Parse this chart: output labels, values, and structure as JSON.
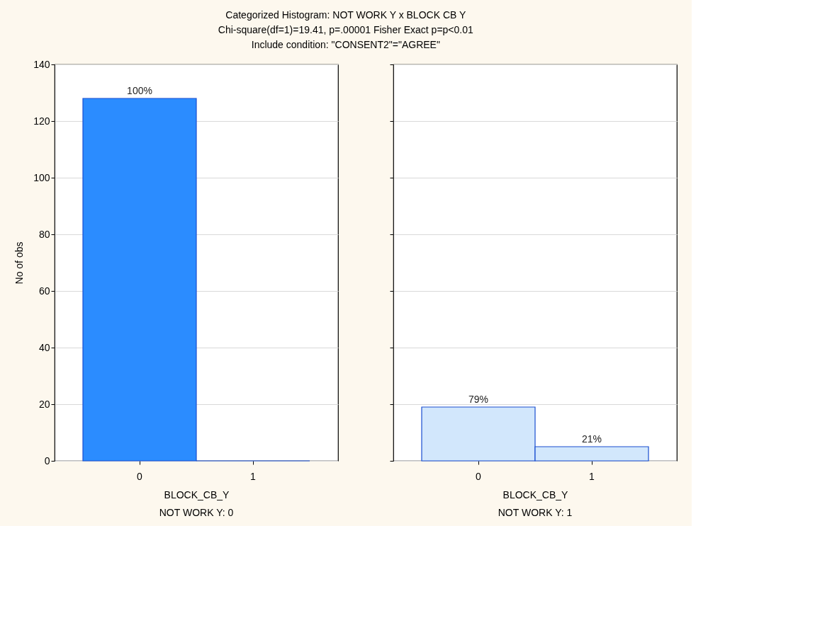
{
  "chart_data": [
    {
      "type": "bar",
      "title": "Categorized Histogram: NOT WORK  Y x BLOCK  CB  Y",
      "subtitle": "Chi-square(df=1)=19.41, p=.00001 Fisher Exact p=p<0.01",
      "annotations": [
        "Include condition:  \"CONSENT2\"=\"AGREE\"",
        "NOT WORK  Y: 0",
        {
          "text": "100%",
          "x": "0",
          "y": 128
        }
      ],
      "xlabel": "BLOCK_CB_Y",
      "ylabel": "No of obs",
      "categories": [
        "0",
        "1"
      ],
      "values": [
        128,
        0
      ],
      "colors": [
        "#2b8cff",
        "#2b8cff"
      ],
      "ylim": [
        0,
        140
      ],
      "yticks": [
        0,
        20,
        40,
        60,
        80,
        100,
        120,
        140
      ],
      "grid": "y"
    },
    {
      "type": "bar",
      "annotations": [
        "NOT WORK  Y: 1",
        {
          "text": "79%",
          "x": "0",
          "y": 19
        },
        {
          "text": "21%",
          "x": "1",
          "y": 5
        }
      ],
      "xlabel": "BLOCK_CB_Y",
      "categories": [
        "0",
        "1"
      ],
      "values": [
        19,
        5
      ],
      "colors": [
        "#d2e7fc",
        "#d2e7fc"
      ],
      "ylim": [
        0,
        140
      ],
      "yticks": [
        0,
        20,
        40,
        60,
        80,
        100,
        120,
        140
      ],
      "grid": "y",
      "tick_labels": "x"
    }
  ]
}
